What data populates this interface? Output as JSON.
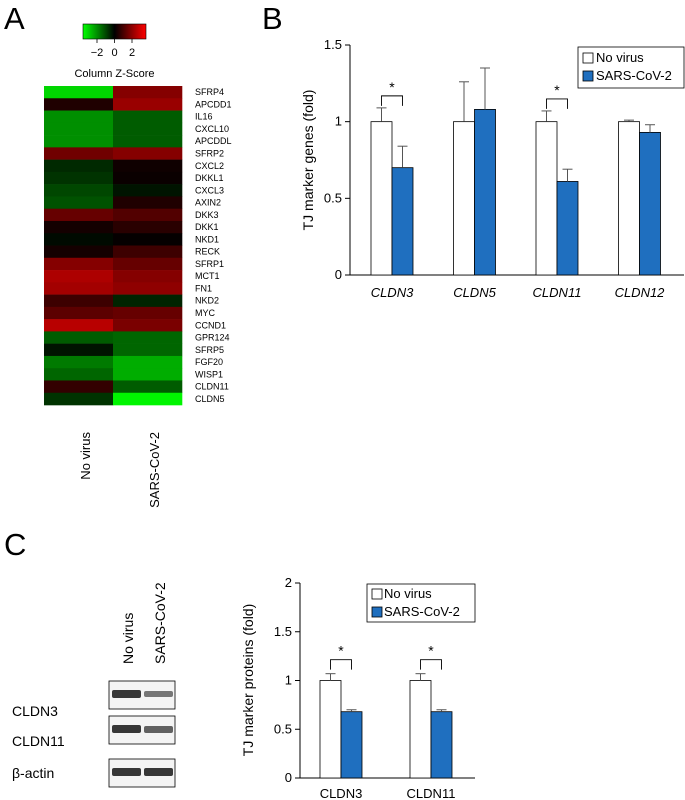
{
  "panels": {
    "a": "A",
    "b": "B",
    "c": "C"
  },
  "chart_data": [
    {
      "type": "heatmap",
      "title": "",
      "colorbar": {
        "title": "Column Z-Score",
        "ticks": [
          "−2",
          "0",
          "2"
        ],
        "low_color": "#00ff00",
        "mid_color": "#000000",
        "high_color": "#ff0000"
      },
      "columns": [
        "No virus",
        "SARS-CoV-2"
      ],
      "rows": [
        "SFRP4",
        "APCDD1",
        "IL16",
        "CXCL10",
        "APCDDL",
        "SFRP2",
        "CXCL2",
        "DKKL1",
        "CXCL3",
        "AXIN2",
        "DKK3",
        "DKK1",
        "NKD1",
        "RECK",
        "SFRP1",
        "MCT1",
        "FN1",
        "NKD2",
        "MYC",
        "CCND1",
        "GPR124",
        "SFRP5",
        "FGF20",
        "WISP1",
        "CLDN11",
        "CLDN5"
      ],
      "values": [
        [
          -2.1,
          1.3
        ],
        [
          0.3,
          1.5
        ],
        [
          -1.4,
          -0.9
        ],
        [
          -1.4,
          -0.9
        ],
        [
          -1.4,
          -0.9
        ],
        [
          1.1,
          1.3
        ],
        [
          -0.4,
          0.15
        ],
        [
          -0.5,
          0.1
        ],
        [
          -0.7,
          -0.2
        ],
        [
          -0.8,
          0.3
        ],
        [
          1.0,
          0.8
        ],
        [
          0.2,
          0.4
        ],
        [
          -0.1,
          0.05
        ],
        [
          0.2,
          0.6
        ],
        [
          1.3,
          1.0
        ],
        [
          1.7,
          1.3
        ],
        [
          1.6,
          1.4
        ],
        [
          0.6,
          -0.35
        ],
        [
          0.9,
          1.0
        ],
        [
          1.8,
          1.2
        ],
        [
          -0.9,
          -1.0
        ],
        [
          -0.2,
          -1.0
        ],
        [
          -1.2,
          -1.7
        ],
        [
          -1.0,
          -1.7
        ],
        [
          0.5,
          -0.9
        ],
        [
          -0.5,
          -2.4
        ]
      ]
    },
    {
      "type": "bar",
      "title": "",
      "ylabel": "TJ marker genes (fold)",
      "xlabel": "",
      "ylim": [
        0,
        1.5
      ],
      "yticks": [
        "0",
        "0.5",
        "1",
        "1.5"
      ],
      "ytick_values": [
        0,
        0.5,
        1,
        1.5
      ],
      "categories": [
        "CLDN3",
        "CLDN5",
        "CLDN11",
        "CLDN12"
      ],
      "legend_position": "top-right",
      "series": [
        {
          "name": "No virus",
          "values": [
            1.0,
            1.0,
            1.0,
            1.0
          ],
          "errors": [
            0.09,
            0.26,
            0.07,
            0.01
          ],
          "color": "#ffffff"
        },
        {
          "name": "SARS-CoV-2",
          "values": [
            0.7,
            1.08,
            0.61,
            0.93
          ],
          "errors": [
            0.14,
            0.27,
            0.08,
            0.05
          ],
          "color": "#1f6fbf"
        }
      ],
      "significance": [
        "*",
        "",
        "*",
        ""
      ]
    },
    {
      "type": "bar",
      "title": "",
      "ylabel": "TJ marker proteins (fold)",
      "xlabel": "",
      "ylim": [
        0,
        2
      ],
      "yticks": [
        "0",
        "0.5",
        "1",
        "1.5",
        "2"
      ],
      "ytick_values": [
        0,
        0.5,
        1,
        1.5,
        2
      ],
      "categories": [
        "CLDN3",
        "CLDN11"
      ],
      "legend_position": "top-right",
      "series": [
        {
          "name": "No virus",
          "values": [
            1.0,
            1.0
          ],
          "errors": [
            0.07,
            0.07
          ],
          "color": "#ffffff"
        },
        {
          "name": "SARS-CoV-2",
          "values": [
            0.68,
            0.68
          ],
          "errors": [
            0.02,
            0.02
          ],
          "color": "#1f6fbf"
        }
      ],
      "significance": [
        "*",
        "*"
      ]
    }
  ],
  "blot": {
    "columns": [
      "No virus",
      "SARS-CoV-2"
    ],
    "rows": [
      "CLDN3",
      "CLDN11",
      "β-actin"
    ],
    "intensities": [
      [
        0.9,
        0.6
      ],
      [
        0.9,
        0.7
      ],
      [
        0.9,
        0.9
      ]
    ]
  }
}
